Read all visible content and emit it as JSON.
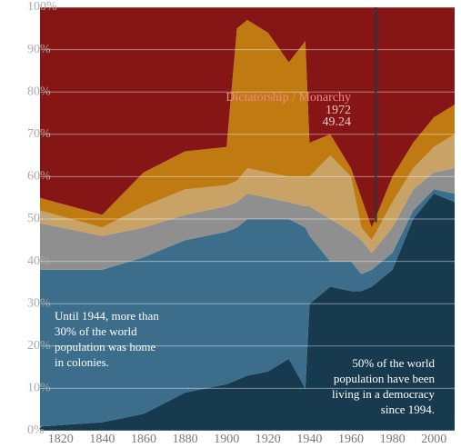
{
  "chart_data": {
    "type": "stacked_area",
    "x": [
      1810,
      1840,
      1860,
      1880,
      1900,
      1905,
      1910,
      1920,
      1930,
      1938,
      1940,
      1950,
      1960,
      1965,
      1970,
      1980,
      1990,
      2000,
      2010
    ],
    "series": [
      {
        "color": "#173a4e",
        "values": [
          1,
          2,
          4,
          9,
          11,
          12,
          13,
          14,
          17,
          10,
          30,
          34,
          33,
          33,
          34,
          38,
          50,
          56,
          54
        ]
      },
      {
        "color": "#3c6e8c",
        "values": [
          37,
          36,
          37,
          36,
          36,
          36,
          37,
          36,
          33,
          38,
          16,
          6,
          7,
          4,
          4,
          4,
          2,
          1,
          2
        ]
      },
      {
        "color": "#8f8f8f",
        "values": [
          11,
          8,
          7,
          6,
          6,
          6,
          6,
          5,
          4,
          5,
          7,
          10,
          7,
          8,
          4,
          6,
          5,
          4,
          6
        ]
      },
      {
        "color": "#c9a266",
        "values": [
          3,
          2,
          5,
          6,
          5,
          5,
          6,
          6,
          6,
          7,
          7,
          15,
          13,
          3,
          3,
          6,
          5,
          6,
          8
        ]
      },
      {
        "color": "#c07a12",
        "values": [
          3,
          3,
          8,
          9,
          9,
          36,
          35,
          33,
          27,
          32,
          8,
          5,
          2,
          7,
          3,
          6,
          6,
          7,
          7
        ]
      },
      {
        "color": "#861616",
        "values": [
          45,
          49,
          39,
          34,
          33,
          5,
          3,
          6,
          13,
          8,
          32,
          30,
          38,
          45,
          52,
          40,
          32,
          26,
          23
        ]
      }
    ],
    "xlim": [
      1810,
      2010
    ],
    "ylim": [
      0,
      100
    ],
    "xticks": [
      1820,
      1840,
      1860,
      1880,
      1900,
      1920,
      1940,
      1960,
      1980,
      2000
    ],
    "yticks": [
      {
        "value": 0,
        "label": "0%"
      },
      {
        "value": 10,
        "label": "10%"
      },
      {
        "value": 20,
        "label": "20%"
      },
      {
        "value": 30,
        "label": "30%"
      },
      {
        "value": 40,
        "label": "40%"
      },
      {
        "value": 50,
        "label": "50%"
      },
      {
        "value": 60,
        "label": "60%"
      },
      {
        "value": 70,
        "label": "70%"
      },
      {
        "value": 80,
        "label": "80%"
      },
      {
        "value": 90,
        "label": "90%"
      },
      {
        "value": 100,
        "label": "100%"
      }
    ],
    "grid": true,
    "tooltip": {
      "label": "Dictatorship / Monarchy",
      "x": 1972,
      "value": 49.24
    },
    "annotations": [
      {
        "lines": [
          "Until 1944, more than",
          "30% of the world",
          "population was home",
          "in colonies."
        ]
      },
      {
        "lines": [
          "50% of the world",
          "population have been",
          "living in a democracy",
          "since 1994."
        ]
      }
    ]
  }
}
